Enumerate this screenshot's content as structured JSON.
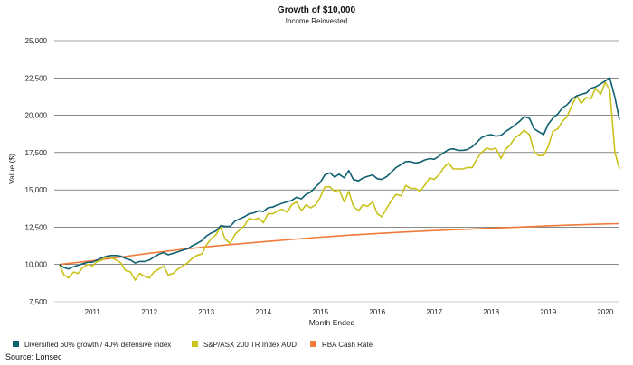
{
  "chart_data": {
    "type": "line",
    "title": "Growth of $10,000",
    "subtitle": "Income Reinvested",
    "xlabel": "Month Ended",
    "ylabel": "Value ($)",
    "source": "Source: Lonsec",
    "xlim": [
      2010.33,
      2020.25
    ],
    "ylim": [
      7500,
      25000
    ],
    "x_ticks": [
      2011,
      2012,
      2013,
      2014,
      2015,
      2016,
      2017,
      2018,
      2019,
      2020
    ],
    "x_tick_labels": [
      "2011",
      "2012",
      "2013",
      "2014",
      "2015",
      "2016",
      "2017",
      "2018",
      "2019",
      "2020"
    ],
    "y_ticks": [
      7500,
      10000,
      12500,
      15000,
      17500,
      20000,
      22500,
      25000
    ],
    "y_tick_labels": [
      "7,500",
      "10,000",
      "12,500",
      "15,000",
      "17,500",
      "20,000",
      "22,500",
      "25,000"
    ],
    "grid": "horizontal",
    "legend_position": "bottom",
    "series": [
      {
        "name": "Diversified 60% growth / 40% defensive index",
        "color": "#0f6070",
        "points": [
          [
            2010.42,
            10000
          ],
          [
            2010.5,
            9800
          ],
          [
            2010.58,
            9700
          ],
          [
            2010.67,
            9850
          ],
          [
            2010.75,
            9950
          ],
          [
            2010.83,
            10050
          ],
          [
            2010.92,
            10150
          ],
          [
            2011.0,
            10150
          ],
          [
            2011.08,
            10300
          ],
          [
            2011.17,
            10450
          ],
          [
            2011.25,
            10550
          ],
          [
            2011.33,
            10600
          ],
          [
            2011.42,
            10600
          ],
          [
            2011.5,
            10550
          ],
          [
            2011.58,
            10400
          ],
          [
            2011.67,
            10300
          ],
          [
            2011.75,
            10100
          ],
          [
            2011.83,
            10200
          ],
          [
            2011.92,
            10200
          ],
          [
            2012.0,
            10300
          ],
          [
            2012.08,
            10500
          ],
          [
            2012.17,
            10700
          ],
          [
            2012.25,
            10800
          ],
          [
            2012.33,
            10650
          ],
          [
            2012.42,
            10750
          ],
          [
            2012.5,
            10850
          ],
          [
            2012.58,
            10950
          ],
          [
            2012.67,
            11050
          ],
          [
            2012.75,
            11250
          ],
          [
            2012.83,
            11400
          ],
          [
            2012.92,
            11600
          ],
          [
            2013.0,
            11900
          ],
          [
            2013.08,
            12100
          ],
          [
            2013.17,
            12250
          ],
          [
            2013.25,
            12600
          ],
          [
            2013.33,
            12550
          ],
          [
            2013.42,
            12550
          ],
          [
            2013.5,
            12900
          ],
          [
            2013.58,
            13050
          ],
          [
            2013.67,
            13200
          ],
          [
            2013.75,
            13400
          ],
          [
            2013.83,
            13450
          ],
          [
            2013.92,
            13600
          ],
          [
            2014.0,
            13550
          ],
          [
            2014.08,
            13800
          ],
          [
            2014.17,
            13850
          ],
          [
            2014.25,
            14000
          ],
          [
            2014.33,
            14100
          ],
          [
            2014.42,
            14200
          ],
          [
            2014.5,
            14300
          ],
          [
            2014.58,
            14500
          ],
          [
            2014.67,
            14400
          ],
          [
            2014.75,
            14700
          ],
          [
            2014.83,
            14850
          ],
          [
            2014.92,
            15200
          ],
          [
            2015.0,
            15500
          ],
          [
            2015.08,
            16000
          ],
          [
            2015.17,
            16150
          ],
          [
            2015.25,
            15850
          ],
          [
            2015.33,
            16050
          ],
          [
            2015.42,
            15800
          ],
          [
            2015.5,
            16300
          ],
          [
            2015.58,
            15700
          ],
          [
            2015.67,
            15600
          ],
          [
            2015.75,
            15800
          ],
          [
            2015.83,
            15900
          ],
          [
            2015.92,
            16000
          ],
          [
            2016.0,
            15750
          ],
          [
            2016.08,
            15700
          ],
          [
            2016.17,
            15900
          ],
          [
            2016.25,
            16200
          ],
          [
            2016.33,
            16500
          ],
          [
            2016.42,
            16700
          ],
          [
            2016.5,
            16900
          ],
          [
            2016.58,
            16900
          ],
          [
            2016.67,
            16800
          ],
          [
            2016.75,
            16850
          ],
          [
            2016.83,
            17000
          ],
          [
            2016.92,
            17100
          ],
          [
            2017.0,
            17050
          ],
          [
            2017.08,
            17250
          ],
          [
            2017.17,
            17500
          ],
          [
            2017.25,
            17700
          ],
          [
            2017.33,
            17750
          ],
          [
            2017.42,
            17650
          ],
          [
            2017.5,
            17650
          ],
          [
            2017.58,
            17700
          ],
          [
            2017.67,
            17900
          ],
          [
            2017.75,
            18200
          ],
          [
            2017.83,
            18500
          ],
          [
            2017.92,
            18650
          ],
          [
            2018.0,
            18700
          ],
          [
            2018.08,
            18600
          ],
          [
            2018.17,
            18650
          ],
          [
            2018.25,
            18900
          ],
          [
            2018.33,
            19100
          ],
          [
            2018.42,
            19350
          ],
          [
            2018.5,
            19600
          ],
          [
            2018.58,
            19900
          ],
          [
            2018.67,
            19800
          ],
          [
            2018.75,
            19100
          ],
          [
            2018.83,
            18900
          ],
          [
            2018.92,
            18700
          ],
          [
            2019.0,
            19400
          ],
          [
            2019.08,
            19800
          ],
          [
            2019.17,
            20100
          ],
          [
            2019.25,
            20500
          ],
          [
            2019.33,
            20700
          ],
          [
            2019.42,
            21100
          ],
          [
            2019.5,
            21300
          ],
          [
            2019.58,
            21400
          ],
          [
            2019.67,
            21500
          ],
          [
            2019.75,
            21800
          ],
          [
            2019.83,
            21900
          ],
          [
            2019.92,
            22100
          ],
          [
            2020.0,
            22300
          ],
          [
            2020.08,
            22500
          ],
          [
            2020.17,
            21200
          ],
          [
            2020.25,
            19700
          ]
        ]
      },
      {
        "name": "S&P/ASX 200 TR Index AUD",
        "color": "#c9c21a",
        "points": [
          [
            2010.42,
            10000
          ],
          [
            2010.5,
            9300
          ],
          [
            2010.58,
            9100
          ],
          [
            2010.67,
            9500
          ],
          [
            2010.75,
            9400
          ],
          [
            2010.83,
            9800
          ],
          [
            2010.92,
            10000
          ],
          [
            2011.0,
            9900
          ],
          [
            2011.08,
            10200
          ],
          [
            2011.17,
            10300
          ],
          [
            2011.25,
            10500
          ],
          [
            2011.33,
            10450
          ],
          [
            2011.42,
            10300
          ],
          [
            2011.5,
            10100
          ],
          [
            2011.58,
            9600
          ],
          [
            2011.67,
            9500
          ],
          [
            2011.75,
            8950
          ],
          [
            2011.83,
            9400
          ],
          [
            2011.92,
            9200
          ],
          [
            2012.0,
            9100
          ],
          [
            2012.08,
            9500
          ],
          [
            2012.17,
            9700
          ],
          [
            2012.25,
            9900
          ],
          [
            2012.33,
            9300
          ],
          [
            2012.42,
            9400
          ],
          [
            2012.5,
            9700
          ],
          [
            2012.58,
            9900
          ],
          [
            2012.67,
            10100
          ],
          [
            2012.75,
            10400
          ],
          [
            2012.83,
            10600
          ],
          [
            2012.92,
            10700
          ],
          [
            2013.0,
            11300
          ],
          [
            2013.08,
            11700
          ],
          [
            2013.17,
            12000
          ],
          [
            2013.25,
            12500
          ],
          [
            2013.33,
            11700
          ],
          [
            2013.42,
            11400
          ],
          [
            2013.5,
            12000
          ],
          [
            2013.58,
            12300
          ],
          [
            2013.67,
            12600
          ],
          [
            2013.75,
            13100
          ],
          [
            2013.83,
            13000
          ],
          [
            2013.92,
            13100
          ],
          [
            2014.0,
            12800
          ],
          [
            2014.08,
            13400
          ],
          [
            2014.17,
            13400
          ],
          [
            2014.25,
            13600
          ],
          [
            2014.33,
            13700
          ],
          [
            2014.42,
            13500
          ],
          [
            2014.5,
            14000
          ],
          [
            2014.58,
            14200
          ],
          [
            2014.67,
            13600
          ],
          [
            2014.75,
            14000
          ],
          [
            2014.83,
            13800
          ],
          [
            2014.92,
            14000
          ],
          [
            2015.0,
            14500
          ],
          [
            2015.08,
            15200
          ],
          [
            2015.17,
            15200
          ],
          [
            2015.25,
            14900
          ],
          [
            2015.33,
            15000
          ],
          [
            2015.42,
            14200
          ],
          [
            2015.5,
            14900
          ],
          [
            2015.58,
            13900
          ],
          [
            2015.67,
            13600
          ],
          [
            2015.75,
            14000
          ],
          [
            2015.83,
            13900
          ],
          [
            2015.92,
            14200
          ],
          [
            2016.0,
            13400
          ],
          [
            2016.08,
            13200
          ],
          [
            2016.17,
            13800
          ],
          [
            2016.25,
            14300
          ],
          [
            2016.33,
            14700
          ],
          [
            2016.42,
            14600
          ],
          [
            2016.5,
            15300
          ],
          [
            2016.58,
            15100
          ],
          [
            2016.67,
            15100
          ],
          [
            2016.75,
            14900
          ],
          [
            2016.83,
            15300
          ],
          [
            2016.92,
            15800
          ],
          [
            2017.0,
            15700
          ],
          [
            2017.08,
            16000
          ],
          [
            2017.17,
            16500
          ],
          [
            2017.25,
            16800
          ],
          [
            2017.33,
            16400
          ],
          [
            2017.42,
            16400
          ],
          [
            2017.5,
            16400
          ],
          [
            2017.58,
            16500
          ],
          [
            2017.67,
            16500
          ],
          [
            2017.75,
            17100
          ],
          [
            2017.83,
            17500
          ],
          [
            2017.92,
            17800
          ],
          [
            2018.0,
            17700
          ],
          [
            2018.08,
            17800
          ],
          [
            2018.17,
            17100
          ],
          [
            2018.25,
            17700
          ],
          [
            2018.33,
            18000
          ],
          [
            2018.42,
            18500
          ],
          [
            2018.5,
            18700
          ],
          [
            2018.58,
            19000
          ],
          [
            2018.67,
            18700
          ],
          [
            2018.75,
            17600
          ],
          [
            2018.83,
            17300
          ],
          [
            2018.92,
            17300
          ],
          [
            2019.0,
            17900
          ],
          [
            2019.08,
            18900
          ],
          [
            2019.17,
            19100
          ],
          [
            2019.25,
            19600
          ],
          [
            2019.33,
            19900
          ],
          [
            2019.42,
            20700
          ],
          [
            2019.5,
            21300
          ],
          [
            2019.58,
            20800
          ],
          [
            2019.67,
            21200
          ],
          [
            2019.75,
            21100
          ],
          [
            2019.83,
            21800
          ],
          [
            2019.92,
            21400
          ],
          [
            2020.0,
            22200
          ],
          [
            2020.08,
            21700
          ],
          [
            2020.17,
            17500
          ],
          [
            2020.25,
            16400
          ]
        ]
      },
      {
        "name": "RBA Cash Rate",
        "color": "#f07a3a",
        "points": [
          [
            2010.42,
            10000
          ],
          [
            2011.0,
            10250
          ],
          [
            2011.5,
            10500
          ],
          [
            2012.0,
            10750
          ],
          [
            2012.5,
            10980
          ],
          [
            2013.0,
            11180
          ],
          [
            2013.5,
            11360
          ],
          [
            2014.0,
            11520
          ],
          [
            2014.5,
            11680
          ],
          [
            2015.0,
            11830
          ],
          [
            2015.5,
            11960
          ],
          [
            2016.0,
            12080
          ],
          [
            2016.5,
            12180
          ],
          [
            2017.0,
            12270
          ],
          [
            2017.5,
            12350
          ],
          [
            2018.0,
            12430
          ],
          [
            2018.5,
            12510
          ],
          [
            2019.0,
            12590
          ],
          [
            2019.5,
            12660
          ],
          [
            2020.0,
            12720
          ],
          [
            2020.25,
            12740
          ]
        ]
      }
    ]
  }
}
